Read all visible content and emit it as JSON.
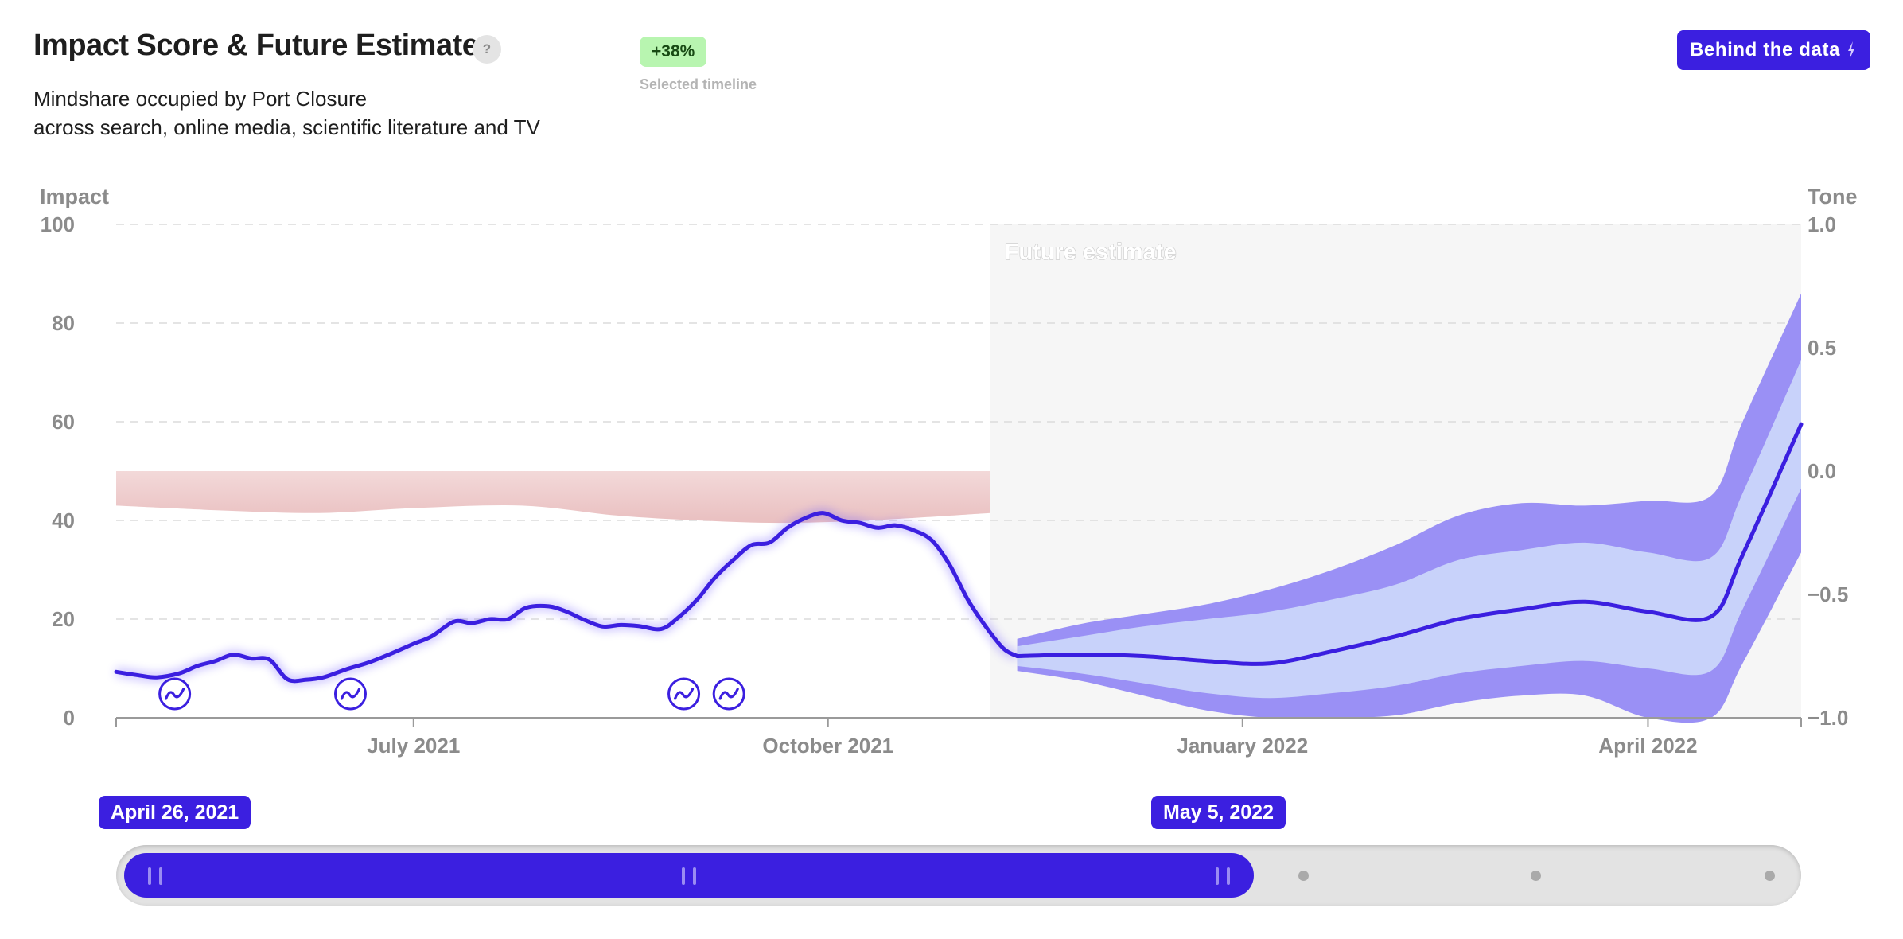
{
  "header": {
    "title": "Impact Score & Future Estimate",
    "help_glyph": "?",
    "subtitle_line1": "Mindshare occupied by Port Closure",
    "subtitle_line2": "across search, online media, scientific literature and TV",
    "change_badge": "+38%",
    "change_caption": "Selected timeline",
    "behind_button": "Behind the data"
  },
  "colors": {
    "accent": "#3b1fe0",
    "band_outer": "#9a90f5",
    "band_inner": "#c8d2fa",
    "tone_band": "#efcaca",
    "future_bg": "#f6f6f6",
    "badge_bg": "#b8f5b0"
  },
  "chart_data": {
    "type": "line",
    "title": "",
    "y_left_label": "Impact",
    "y_right_label": "Tone",
    "ylim": [
      0,
      100
    ],
    "y_right_lim": [
      -1.0,
      1.0
    ],
    "y_ticks": [
      "0",
      "20",
      "40",
      "60",
      "80",
      "100"
    ],
    "y_right_ticks": [
      "1.0",
      "0.5",
      "0.0",
      "−0.5",
      "−1.0"
    ],
    "x_range": [
      "2021-04-26",
      "2022-05-05"
    ],
    "x_ticks": [
      {
        "date": "2021-07-01",
        "label": "July 2021"
      },
      {
        "date": "2021-10-01",
        "label": "October 2021"
      },
      {
        "date": "2022-01-01",
        "label": "January 2022"
      },
      {
        "date": "2022-04-01",
        "label": "April 2022"
      }
    ],
    "grid": true,
    "future_start": "2021-11-06",
    "future_label": "Future estimate",
    "series": [
      {
        "name": "",
        "role": "impact",
        "points": [
          [
            "2021-04-26",
            9.3
          ],
          [
            "2021-05-01",
            8.6
          ],
          [
            "2021-05-05",
            8.2
          ],
          [
            "2021-05-10",
            9.0
          ],
          [
            "2021-05-14",
            10.5
          ],
          [
            "2021-05-18",
            11.5
          ],
          [
            "2021-05-22",
            12.8
          ],
          [
            "2021-05-26",
            12.0
          ],
          [
            "2021-05-30",
            11.8
          ],
          [
            "2021-06-03",
            7.8
          ],
          [
            "2021-06-07",
            7.7
          ],
          [
            "2021-06-11",
            8.2
          ],
          [
            "2021-06-16",
            9.8
          ],
          [
            "2021-06-21",
            11.2
          ],
          [
            "2021-06-26",
            13.0
          ],
          [
            "2021-07-01",
            15.0
          ],
          [
            "2021-07-05",
            16.5
          ],
          [
            "2021-07-10",
            19.5
          ],
          [
            "2021-07-14",
            19.2
          ],
          [
            "2021-07-18",
            20.0
          ],
          [
            "2021-07-22",
            20.0
          ],
          [
            "2021-07-26",
            22.3
          ],
          [
            "2021-07-31",
            22.6
          ],
          [
            "2021-08-04",
            21.5
          ],
          [
            "2021-08-08",
            19.8
          ],
          [
            "2021-08-12",
            18.5
          ],
          [
            "2021-08-16",
            18.8
          ],
          [
            "2021-08-20",
            18.6
          ],
          [
            "2021-08-25",
            18.0
          ],
          [
            "2021-08-29",
            20.5
          ],
          [
            "2021-09-02",
            24.0
          ],
          [
            "2021-09-06",
            28.5
          ],
          [
            "2021-09-10",
            32.0
          ],
          [
            "2021-09-14",
            35.0
          ],
          [
            "2021-09-18",
            35.5
          ],
          [
            "2021-09-22",
            38.5
          ],
          [
            "2021-09-26",
            40.5
          ],
          [
            "2021-09-30",
            41.5
          ],
          [
            "2021-10-04",
            40.0
          ],
          [
            "2021-10-08",
            39.5
          ],
          [
            "2021-10-12",
            38.5
          ],
          [
            "2021-10-16",
            39.0
          ],
          [
            "2021-10-20",
            38.0
          ],
          [
            "2021-10-24",
            36.0
          ],
          [
            "2021-10-28",
            31.0
          ],
          [
            "2021-11-01",
            24.0
          ],
          [
            "2021-11-05",
            18.5
          ],
          [
            "2021-11-09",
            14.0
          ],
          [
            "2021-11-12",
            12.5
          ]
        ]
      },
      {
        "name": "",
        "role": "forecast",
        "points": [
          [
            "2021-11-12",
            12.5
          ],
          [
            "2021-11-26",
            12.8
          ],
          [
            "2021-12-10",
            12.5
          ],
          [
            "2021-12-24",
            11.5
          ],
          [
            "2022-01-07",
            11.0
          ],
          [
            "2022-01-21",
            13.5
          ],
          [
            "2022-02-04",
            16.5
          ],
          [
            "2022-02-18",
            20.0
          ],
          [
            "2022-03-04",
            22.0
          ],
          [
            "2022-03-18",
            23.5
          ],
          [
            "2022-04-01",
            21.5
          ],
          [
            "2022-04-15",
            20.5
          ],
          [
            "2022-04-22",
            33.0
          ],
          [
            "2022-05-05",
            59.5
          ]
        ],
        "band_inner": [
          [
            10.5,
            14.5
          ],
          [
            9.0,
            16.5
          ],
          [
            7.0,
            18.5
          ],
          [
            5.0,
            20.0
          ],
          [
            4.0,
            21.5
          ],
          [
            5.0,
            24.0
          ],
          [
            6.5,
            27.0
          ],
          [
            9.0,
            32.0
          ],
          [
            10.5,
            34.0
          ],
          [
            11.5,
            35.5
          ],
          [
            10.0,
            33.5
          ],
          [
            9.5,
            32.5
          ],
          [
            22.0,
            45.5
          ],
          [
            46.5,
            72.5
          ]
        ],
        "band_outer": [
          [
            9.5,
            16.0
          ],
          [
            7.5,
            19.0
          ],
          [
            4.5,
            21.0
          ],
          [
            1.5,
            23.0
          ],
          [
            0.0,
            26.0
          ],
          [
            0.0,
            30.0
          ],
          [
            0.5,
            35.0
          ],
          [
            3.0,
            41.0
          ],
          [
            4.5,
            43.5
          ],
          [
            4.5,
            43.0
          ],
          [
            0.0,
            44.0
          ],
          [
            0.0,
            45.0
          ],
          [
            11.0,
            60.0
          ],
          [
            33.5,
            86.0
          ]
        ]
      },
      {
        "name": "",
        "role": "tone",
        "points": [
          [
            "2021-04-26",
            -0.14
          ],
          [
            "2021-05-20",
            -0.16
          ],
          [
            "2021-06-10",
            -0.17
          ],
          [
            "2021-07-01",
            -0.15
          ],
          [
            "2021-07-25",
            -0.14
          ],
          [
            "2021-08-15",
            -0.18
          ],
          [
            "2021-09-02",
            -0.2
          ],
          [
            "2021-09-20",
            -0.21
          ],
          [
            "2021-10-10",
            -0.2
          ],
          [
            "2021-11-06",
            -0.17
          ]
        ],
        "band_top": 0.0
      }
    ],
    "events": [
      {
        "date": "2021-05-09",
        "icon": "trend-icon"
      },
      {
        "date": "2021-06-17",
        "icon": "trend-icon"
      },
      {
        "date": "2021-08-30",
        "icon": "trend-icon"
      },
      {
        "date": "2021-09-09",
        "icon": "trend-icon"
      }
    ]
  },
  "timeline": {
    "start_label": "April 26, 2021",
    "end_label": "May 5, 2022"
  }
}
